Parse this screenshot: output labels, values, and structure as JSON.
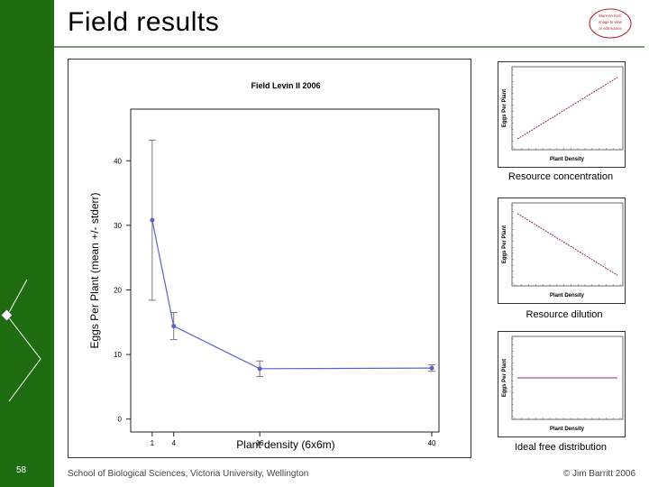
{
  "slide": {
    "title": "Field results",
    "page_number": "58",
    "footer_left": "School of Biological Sciences, Victoria University, Wellington",
    "footer_right": "© Jim Barritt 2006",
    "seal_lines": [
      "More on KVC",
      "image to view",
      "or edit source"
    ],
    "colors": {
      "sidebar": "#1f6b10",
      "series": "#5b63c8",
      "diag": "#8e2a6a"
    }
  },
  "chart_data": [
    {
      "type": "line",
      "title": "Field Levin II 2006",
      "xlabel": "Plant density (6x6m)",
      "ylabel": "Eggs Per Plant (mean +/- stderr)",
      "x": [
        1,
        4,
        16,
        40
      ],
      "y": [
        30.8,
        14.4,
        7.8,
        7.9
      ],
      "err_low": [
        18.4,
        12.3,
        6.6,
        7.4
      ],
      "err_high": [
        43.2,
        16.5,
        9.0,
        8.4
      ],
      "xticks": [
        1,
        4,
        16,
        40
      ],
      "yticks": [
        0,
        10,
        20,
        30,
        40
      ],
      "xlim": [
        -2,
        41
      ],
      "ylim": [
        -2,
        48
      ],
      "grid": false
    },
    {
      "type": "line",
      "title": "Resource concentration",
      "xlabel": "Plant Density",
      "ylabel": "Eggs Per Plant",
      "x": [
        0,
        1
      ],
      "y": [
        0.05,
        0.95
      ],
      "axis_ticks": false
    },
    {
      "type": "line",
      "title": "Resource dilution",
      "xlabel": "Plant Density",
      "ylabel": "Eggs Per Plant",
      "x": [
        0,
        1
      ],
      "y": [
        0.95,
        0.05
      ],
      "axis_ticks": false
    },
    {
      "type": "line",
      "title": "Ideal free distribution",
      "xlabel": "Plant Density",
      "ylabel": "Eggs Per Plant",
      "x": [
        0,
        1
      ],
      "y": [
        0.5,
        0.5
      ],
      "axis_ticks": false
    }
  ]
}
